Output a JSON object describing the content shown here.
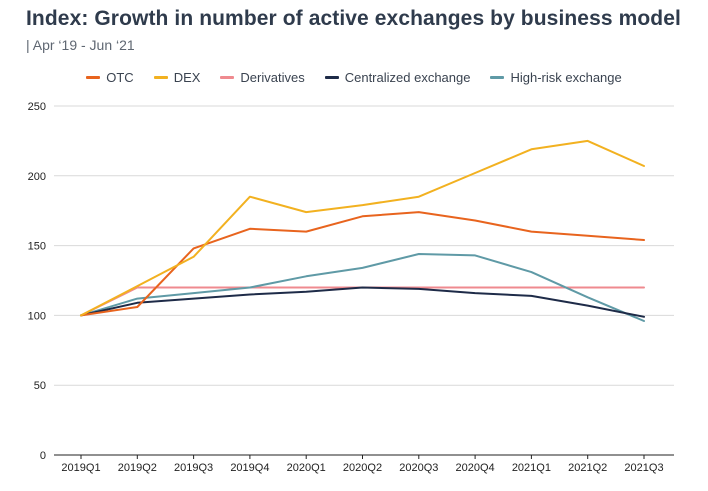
{
  "title": "Index: Growth in number of active exchanges by business model",
  "subtitle": "| Apr ‘19 - Jun ‘21",
  "chart_data": {
    "type": "line",
    "title": "Index: Growth in number of active exchanges by business model",
    "subtitle": "| Apr ‘19 - Jun ‘21",
    "xlabel": "",
    "ylabel": "",
    "categories": [
      "2019Q1",
      "2019Q2",
      "2019Q3",
      "2019Q4",
      "2020Q1",
      "2020Q2",
      "2020Q3",
      "2020Q4",
      "2021Q1",
      "2021Q2",
      "2021Q3"
    ],
    "y_ticks": [
      "0",
      "50",
      "100",
      "150",
      "200",
      "250"
    ],
    "ylim": [
      0,
      250
    ],
    "grid": "horizontal",
    "legend_position": "top",
    "series": [
      {
        "name": "OTC",
        "color": "#e8641e",
        "values": [
          100,
          106,
          148,
          162,
          160,
          171,
          174,
          168,
          160,
          157,
          154
        ]
      },
      {
        "name": "DEX",
        "color": "#f2b120",
        "values": [
          100,
          121,
          142,
          185,
          174,
          179,
          185,
          202,
          219,
          225,
          207
        ]
      },
      {
        "name": "Derivatives",
        "color": "#ef8a8f",
        "values": [
          100,
          120,
          120,
          120,
          120,
          120,
          120,
          120,
          120,
          120,
          120
        ]
      },
      {
        "name": "Centralized exchange",
        "color": "#1e2b48",
        "values": [
          100,
          109,
          112,
          115,
          117,
          120,
          119,
          116,
          114,
          107,
          99
        ]
      },
      {
        "name": "High-risk exchange",
        "color": "#5f9aa6",
        "values": [
          100,
          112,
          116,
          120,
          128,
          134,
          144,
          143,
          131,
          113,
          96
        ]
      }
    ]
  }
}
